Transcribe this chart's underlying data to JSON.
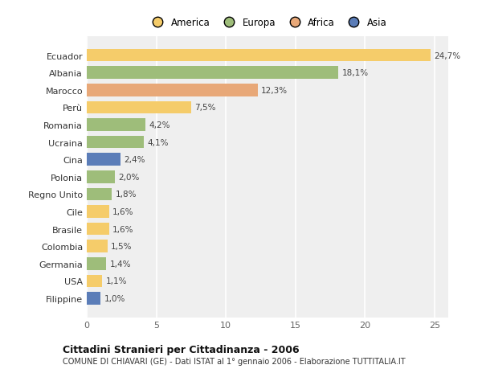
{
  "countries": [
    "Ecuador",
    "Albania",
    "Marocco",
    "Perù",
    "Romania",
    "Ucraina",
    "Cina",
    "Polonia",
    "Regno Unito",
    "Cile",
    "Brasile",
    "Colombia",
    "Germania",
    "USA",
    "Filippine"
  ],
  "values": [
    24.7,
    18.1,
    12.3,
    7.5,
    4.2,
    4.1,
    2.4,
    2.0,
    1.8,
    1.6,
    1.6,
    1.5,
    1.4,
    1.1,
    1.0
  ],
  "labels": [
    "24,7%",
    "18,1%",
    "12,3%",
    "7,5%",
    "4,2%",
    "4,1%",
    "2,4%",
    "2,0%",
    "1,8%",
    "1,6%",
    "1,6%",
    "1,5%",
    "1,4%",
    "1,1%",
    "1,0%"
  ],
  "continents": [
    "America",
    "Europa",
    "Africa",
    "America",
    "Europa",
    "Europa",
    "Asia",
    "Europa",
    "Europa",
    "America",
    "America",
    "America",
    "Europa",
    "America",
    "Asia"
  ],
  "colors": {
    "America": "#F5CC6A",
    "Europa": "#9EBD7A",
    "Africa": "#E8A878",
    "Asia": "#5B7DB8"
  },
  "legend_order": [
    "America",
    "Europa",
    "Africa",
    "Asia"
  ],
  "title": "Cittadini Stranieri per Cittadinanza - 2006",
  "subtitle": "COMUNE DI CHIAVARI (GE) - Dati ISTAT al 1° gennaio 2006 - Elaborazione TUTTITALIA.IT",
  "xlim": [
    0,
    26
  ],
  "xticks": [
    0,
    5,
    10,
    15,
    20,
    25
  ],
  "background_color": "#ffffff",
  "plot_background": "#efefef"
}
